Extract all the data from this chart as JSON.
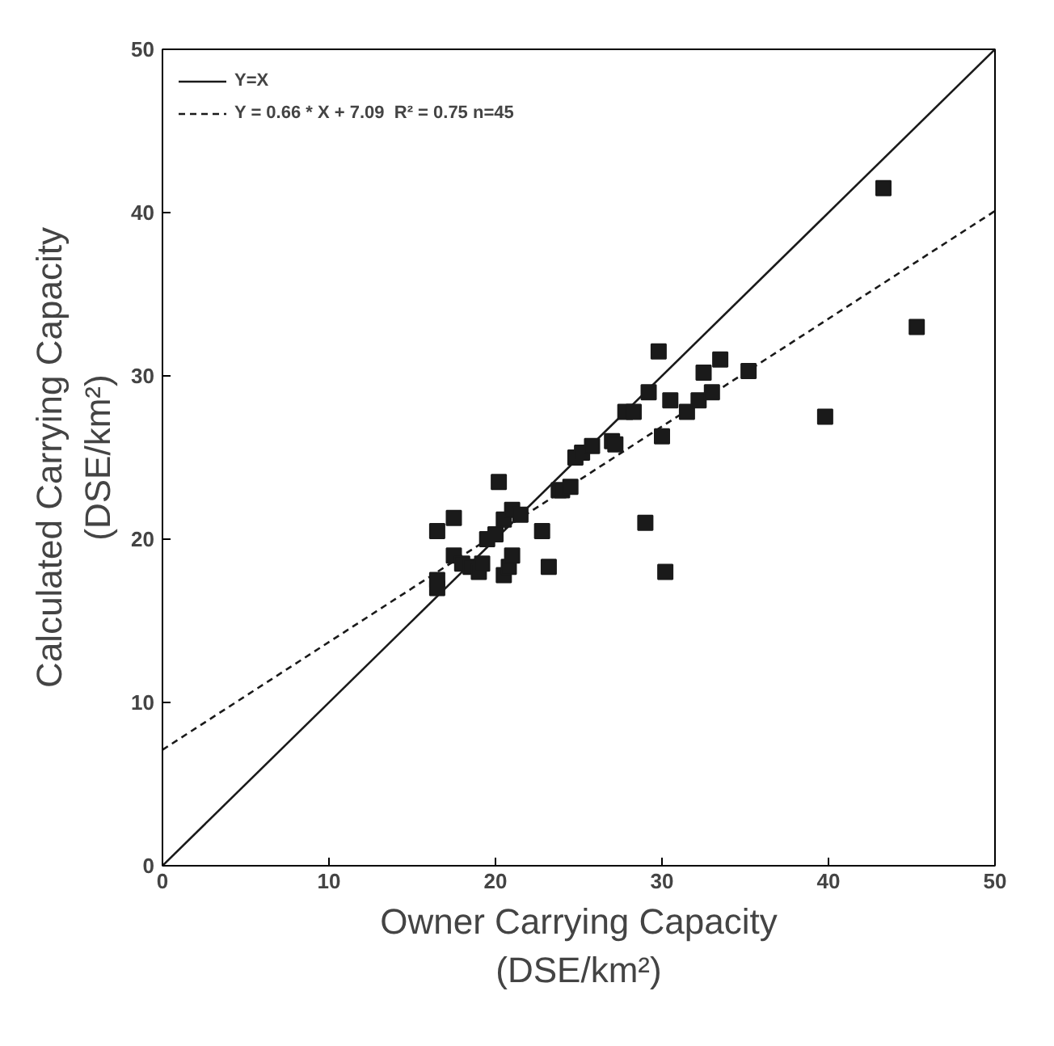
{
  "chart_data": {
    "type": "scatter",
    "xlabel": "Owner Carrying Capacity\n(DSE/km²)",
    "ylabel": "Calculated Carrying Capacity\n(DSE/km²)",
    "xlim": [
      0,
      50
    ],
    "ylim": [
      0,
      50
    ],
    "xticks": [
      0,
      10,
      20,
      30,
      40,
      50
    ],
    "yticks": [
      0,
      10,
      20,
      30,
      40,
      50
    ],
    "grid": false,
    "legend": "top left",
    "series": [
      {
        "type": "line",
        "name": "Y=X",
        "color": "#1a1a1a",
        "line_style": "solid",
        "marker": "none",
        "x": [
          0,
          50
        ],
        "values": [
          0,
          50
        ]
      },
      {
        "type": "line",
        "name": "Y = 0.66 * X + 7.09  R² = 0.75 n=45",
        "color": "#1a1a1a",
        "line_style": "dashed",
        "marker": "none",
        "x": [
          0,
          50
        ],
        "values": [
          7.1,
          40.1
        ]
      },
      {
        "color": "#1a1a1a",
        "marker": "square",
        "x": [
          16.5,
          16.5,
          16.5,
          17.5,
          17.5,
          18,
          18.5,
          19,
          19.2,
          19.5,
          20,
          20.2,
          20.5,
          20.5,
          20.8,
          21,
          21,
          21.5,
          22.8,
          23.2,
          23.8,
          24,
          24.5,
          24.8,
          25.2,
          25.8,
          27,
          27.2,
          27.8,
          28.3,
          29,
          29.2,
          29.8,
          30,
          30.2,
          30.5,
          31.5,
          32.2,
          32.5,
          33,
          33.5,
          35.2,
          39.8,
          43.3,
          45.3
        ],
        "values": [
          20.5,
          17.5,
          17,
          21.3,
          19,
          18.5,
          18.3,
          18,
          18.5,
          20,
          20.3,
          23.5,
          17.8,
          21.2,
          18.3,
          21.8,
          19,
          21.5,
          20.5,
          18.3,
          23,
          23,
          23.2,
          25,
          25.3,
          25.7,
          26,
          25.8,
          27.8,
          27.8,
          21,
          29,
          31.5,
          26.3,
          18,
          28.5,
          27.8,
          28.5,
          30.2,
          29,
          31,
          30.3,
          27.5,
          41.5,
          33
        ]
      }
    ]
  }
}
